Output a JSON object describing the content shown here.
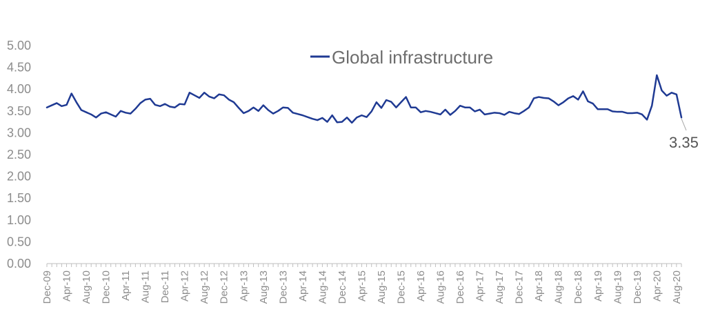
{
  "chart_data": {
    "type": "line",
    "title": "",
    "xlabel": "",
    "ylabel": "",
    "ylim": [
      0,
      5
    ],
    "ytick_labels": [
      "0.00",
      "0.50",
      "1.00",
      "1.50",
      "2.00",
      "2.50",
      "3.00",
      "3.50",
      "4.00",
      "4.50",
      "5.00"
    ],
    "x_start": "Dec-09",
    "x_end": "Aug-20",
    "xtick_labels": [
      "Dec-09",
      "Apr-10",
      "Aug-10",
      "Dec-10",
      "Apr-11",
      "Aug-11",
      "Dec-11",
      "Apr-12",
      "Aug-12",
      "Dec-12",
      "Apr-13",
      "Aug-13",
      "Dec-13",
      "Apr-14",
      "Aug-14",
      "Dec-14",
      "Apr-15",
      "Aug-15",
      "Dec-15",
      "Apr-16",
      "Aug-16",
      "Dec-16",
      "Apr-17",
      "Aug-17",
      "Dec-17",
      "Apr-18",
      "Aug-18",
      "Dec-18",
      "Apr-19",
      "Aug-19",
      "Dec-19",
      "Apr-20",
      "Aug-20"
    ],
    "legend_position": "top-right",
    "grid": false,
    "series": [
      {
        "name": "Global infrastructure",
        "color": "#1f3a93",
        "values": [
          3.58,
          3.63,
          3.68,
          3.61,
          3.64,
          3.9,
          3.7,
          3.52,
          3.47,
          3.42,
          3.35,
          3.44,
          3.47,
          3.42,
          3.37,
          3.5,
          3.46,
          3.44,
          3.55,
          3.68,
          3.76,
          3.78,
          3.64,
          3.61,
          3.66,
          3.6,
          3.58,
          3.66,
          3.65,
          3.92,
          3.86,
          3.8,
          3.92,
          3.83,
          3.79,
          3.88,
          3.86,
          3.76,
          3.7,
          3.57,
          3.45,
          3.5,
          3.58,
          3.5,
          3.63,
          3.52,
          3.44,
          3.5,
          3.58,
          3.57,
          3.46,
          3.43,
          3.4,
          3.36,
          3.32,
          3.29,
          3.34,
          3.25,
          3.4,
          3.24,
          3.25,
          3.35,
          3.23,
          3.35,
          3.4,
          3.36,
          3.49,
          3.7,
          3.57,
          3.75,
          3.71,
          3.58,
          3.7,
          3.82,
          3.58,
          3.58,
          3.47,
          3.5,
          3.48,
          3.45,
          3.42,
          3.53,
          3.41,
          3.5,
          3.62,
          3.58,
          3.58,
          3.49,
          3.53,
          3.42,
          3.44,
          3.46,
          3.45,
          3.41,
          3.48,
          3.45,
          3.43,
          3.5,
          3.58,
          3.79,
          3.82,
          3.8,
          3.79,
          3.72,
          3.63,
          3.7,
          3.79,
          3.84,
          3.76,
          3.95,
          3.72,
          3.67,
          3.54,
          3.54,
          3.54,
          3.49,
          3.48,
          3.48,
          3.45,
          3.45,
          3.46,
          3.42,
          3.3,
          3.62,
          4.32,
          3.97,
          3.85,
          3.92,
          3.88,
          3.35
        ]
      }
    ],
    "end_annotation": "3.35"
  }
}
